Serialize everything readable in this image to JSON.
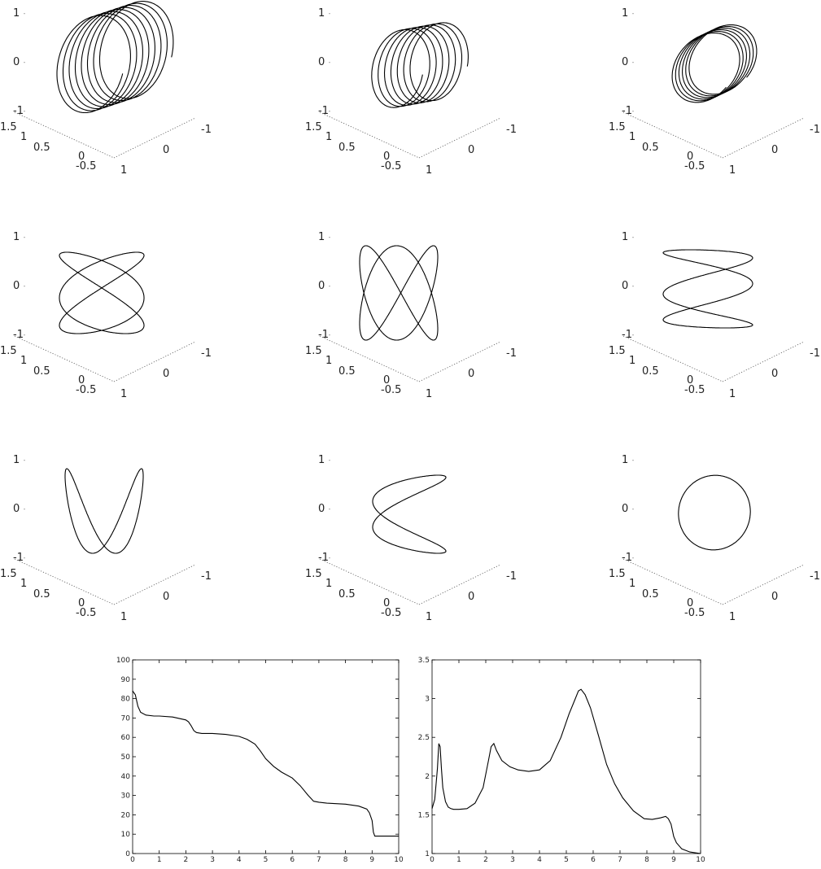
{
  "chart_data": [
    {
      "type": "scatter",
      "panel": "3d-1",
      "curve": "helical coil, about 8 turns",
      "axes": {
        "vertical_ticks": [
          "1",
          "0",
          "-1"
        ],
        "left_ticks": [
          "1.5",
          "1",
          "0.5",
          "0",
          "-0.5"
        ],
        "right_ticks": [
          "1",
          "0",
          "-1"
        ]
      }
    },
    {
      "type": "scatter",
      "panel": "3d-2",
      "curve": "helical coil, about 7 turns",
      "axes": {
        "vertical_ticks": [
          "1",
          "0",
          "-1"
        ],
        "left_ticks": [
          "1.5",
          "1",
          "0.5",
          "0",
          "-0.5"
        ],
        "right_ticks": [
          "1",
          "0",
          "-1"
        ]
      }
    },
    {
      "type": "scatter",
      "panel": "3d-3",
      "curve": "tilted coil, about 6 loops",
      "axes": {
        "vertical_ticks": [
          "1",
          "0",
          "-1"
        ],
        "left_ticks": [
          "1.5",
          "1",
          "0.5",
          "0",
          "-0.5"
        ],
        "right_ticks": [
          "1",
          "0",
          "-1"
        ]
      }
    },
    {
      "type": "scatter",
      "panel": "3d-4",
      "curve": "tangled loops",
      "axes": {
        "vertical_ticks": [
          "1",
          "0",
          "-1"
        ],
        "left_ticks": [
          "1.5",
          "1",
          "0.5",
          "0",
          "-0.5"
        ],
        "right_ticks": [
          "1",
          "0",
          "-1"
        ]
      }
    },
    {
      "type": "scatter",
      "panel": "3d-5",
      "curve": "tangled loops",
      "axes": {
        "vertical_ticks": [
          "1",
          "0",
          "-1"
        ],
        "left_ticks": [
          "1.5",
          "1",
          "0.5",
          "0",
          "-0.5"
        ],
        "right_ticks": [
          "1",
          "0",
          "-1"
        ]
      }
    },
    {
      "type": "scatter",
      "panel": "3d-6",
      "curve": "crossing loops",
      "axes": {
        "vertical_ticks": [
          "1",
          "0",
          "-1"
        ],
        "left_ticks": [
          "1.5",
          "1",
          "0.5",
          "0",
          "-0.5"
        ],
        "right_ticks": [
          "1",
          "0",
          "-1"
        ]
      }
    },
    {
      "type": "scatter",
      "panel": "3d-7",
      "curve": "three loops",
      "axes": {
        "vertical_ticks": [
          "1",
          "0",
          "-1"
        ],
        "left_ticks": [
          "1.5",
          "1",
          "0.5",
          "0",
          "-0.5"
        ],
        "right_ticks": [
          "1",
          "0",
          "-1"
        ]
      }
    },
    {
      "type": "scatter",
      "panel": "3d-8",
      "curve": "two loops",
      "axes": {
        "vertical_ticks": [
          "1",
          "0",
          "-1"
        ],
        "left_ticks": [
          "1.5",
          "1",
          "0.5",
          "0",
          "-0.5"
        ],
        "right_ticks": [
          "1",
          "0",
          "-1"
        ]
      }
    },
    {
      "type": "scatter",
      "panel": "3d-9",
      "curve": "single loop",
      "axes": {
        "vertical_ticks": [
          "1",
          "0",
          "-1"
        ],
        "left_ticks": [
          "1.5",
          "1",
          "0.5",
          "0",
          "-0.5"
        ],
        "right_ticks": [
          "1",
          "0",
          "-1"
        ]
      }
    },
    {
      "type": "line",
      "panel": "2d-left",
      "xlim": [
        0,
        10
      ],
      "ylim": [
        0,
        100
      ],
      "xticks": [
        0,
        1,
        2,
        3,
        4,
        5,
        6,
        7,
        8,
        9,
        10
      ],
      "yticks": [
        0,
        10,
        20,
        30,
        40,
        50,
        60,
        70,
        80,
        90,
        100
      ],
      "title": "",
      "xlabel": "",
      "ylabel": "",
      "x": [
        0,
        0.05,
        0.1,
        0.15,
        0.2,
        0.3,
        0.5,
        0.8,
        1,
        1.5,
        2,
        2.1,
        2.2,
        2.3,
        2.4,
        2.6,
        3,
        3.5,
        4,
        4.3,
        4.6,
        4.8,
        5,
        5.3,
        5.6,
        6,
        6.3,
        6.6,
        6.8,
        7,
        7.3,
        8,
        8.5,
        8.8,
        8.9,
        9,
        9.05,
        9.1,
        9.2,
        9.5,
        10
      ],
      "y": [
        84,
        83,
        82,
        79,
        76,
        73,
        71.5,
        71,
        71,
        70.5,
        69,
        68,
        66,
        63.5,
        62.5,
        62,
        62,
        61.5,
        60.5,
        59,
        56.5,
        53,
        49,
        45,
        42,
        39,
        35,
        30,
        27,
        26.5,
        26,
        25.5,
        24.5,
        23,
        21,
        17,
        11,
        9,
        9,
        9,
        9
      ]
    },
    {
      "type": "line",
      "panel": "2d-right",
      "xlim": [
        0,
        10
      ],
      "ylim": [
        1,
        3.5
      ],
      "xticks": [
        0,
        1,
        2,
        3,
        4,
        5,
        6,
        7,
        8,
        9,
        10
      ],
      "yticks": [
        1,
        1.5,
        2,
        2.5,
        3,
        3.5
      ],
      "title": "",
      "xlabel": "",
      "ylabel": "",
      "x": [
        0,
        0.1,
        0.2,
        0.25,
        0.3,
        0.35,
        0.4,
        0.5,
        0.6,
        0.7,
        0.8,
        1,
        1.3,
        1.6,
        1.9,
        2.1,
        2.2,
        2.3,
        2.4,
        2.6,
        2.9,
        3.2,
        3.6,
        4,
        4.4,
        4.8,
        5.1,
        5.3,
        5.45,
        5.55,
        5.7,
        5.9,
        6.2,
        6.5,
        6.8,
        7.1,
        7.5,
        7.9,
        8.2,
        8.5,
        8.7,
        8.8,
        8.9,
        9,
        9.1,
        9.3,
        9.6,
        10
      ],
      "y": [
        1.58,
        1.7,
        2.1,
        2.42,
        2.38,
        2.1,
        1.85,
        1.67,
        1.6,
        1.58,
        1.57,
        1.57,
        1.58,
        1.65,
        1.85,
        2.2,
        2.38,
        2.42,
        2.33,
        2.2,
        2.12,
        2.08,
        2.06,
        2.08,
        2.2,
        2.5,
        2.8,
        2.97,
        3.1,
        3.12,
        3.05,
        2.88,
        2.52,
        2.15,
        1.9,
        1.72,
        1.55,
        1.45,
        1.44,
        1.46,
        1.48,
        1.45,
        1.38,
        1.22,
        1.14,
        1.06,
        1.02,
        1.0
      ]
    }
  ]
}
